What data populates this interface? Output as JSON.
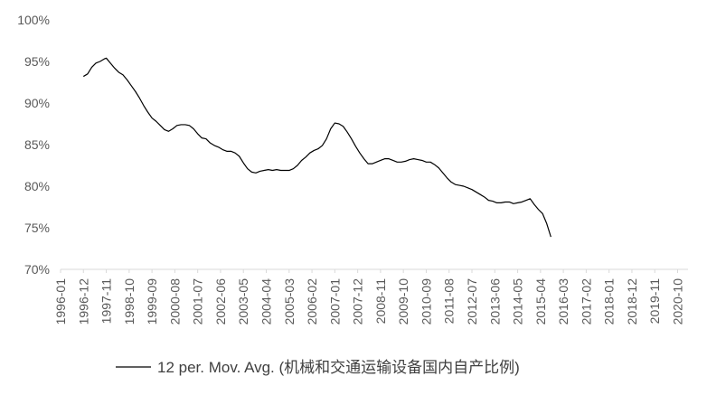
{
  "chart_data": {
    "type": "line",
    "title": "",
    "xlabel": "",
    "ylabel": "",
    "y_unit": "%",
    "ylim": [
      70,
      100
    ],
    "y_ticks": [
      "70%",
      "75%",
      "80%",
      "85%",
      "90%",
      "95%",
      "100%"
    ],
    "y_tick_values": [
      70,
      75,
      80,
      85,
      90,
      95,
      100
    ],
    "x_range": [
      "1996-01",
      "2021-03"
    ],
    "x_tick_labels": [
      "1996-01",
      "1996-12",
      "1997-11",
      "1998-10",
      "1999-09",
      "2000-08",
      "2001-07",
      "2002-06",
      "2003-05",
      "2004-04",
      "2005-03",
      "2006-02",
      "2007-01",
      "2007-12",
      "2008-11",
      "2009-10",
      "2010-09",
      "2011-08",
      "2012-07",
      "2013-06",
      "2014-05",
      "2015-04",
      "2016-03",
      "2017-02",
      "2018-01",
      "2018-12",
      "2019-11",
      "2020-10"
    ],
    "grid": false,
    "legend_position": "bottom",
    "series": [
      {
        "name": "12 per. Mov. Avg. (机械和交通运输设备国内自产比例)",
        "color": "#000000",
        "points": [
          [
            "1996-12",
            93.2
          ],
          [
            "1997-02",
            93.5
          ],
          [
            "1997-04",
            94.3
          ],
          [
            "1997-06",
            94.8
          ],
          [
            "1997-08",
            95.0
          ],
          [
            "1997-10",
            95.3
          ],
          [
            "1997-11",
            95.4
          ],
          [
            "1998-01",
            94.8
          ],
          [
            "1998-03",
            94.2
          ],
          [
            "1998-05",
            93.7
          ],
          [
            "1998-07",
            93.4
          ],
          [
            "1998-09",
            92.8
          ],
          [
            "1998-11",
            92.1
          ],
          [
            "1999-01",
            91.4
          ],
          [
            "1999-03",
            90.6
          ],
          [
            "1999-05",
            89.7
          ],
          [
            "1999-07",
            88.9
          ],
          [
            "1999-09",
            88.2
          ],
          [
            "1999-11",
            87.8
          ],
          [
            "2000-01",
            87.3
          ],
          [
            "2000-03",
            86.8
          ],
          [
            "2000-05",
            86.6
          ],
          [
            "2000-07",
            86.9
          ],
          [
            "2000-09",
            87.3
          ],
          [
            "2000-11",
            87.4
          ],
          [
            "2001-01",
            87.4
          ],
          [
            "2001-03",
            87.3
          ],
          [
            "2001-05",
            86.9
          ],
          [
            "2001-07",
            86.3
          ],
          [
            "2001-09",
            85.8
          ],
          [
            "2001-11",
            85.7
          ],
          [
            "2002-01",
            85.2
          ],
          [
            "2002-03",
            84.9
          ],
          [
            "2002-05",
            84.7
          ],
          [
            "2002-07",
            84.4
          ],
          [
            "2002-09",
            84.2
          ],
          [
            "2002-11",
            84.2
          ],
          [
            "2003-01",
            84.0
          ],
          [
            "2003-03",
            83.6
          ],
          [
            "2003-05",
            82.8
          ],
          [
            "2003-07",
            82.1
          ],
          [
            "2003-09",
            81.7
          ],
          [
            "2003-11",
            81.6
          ],
          [
            "2004-01",
            81.8
          ],
          [
            "2004-03",
            81.9
          ],
          [
            "2004-05",
            82.0
          ],
          [
            "2004-07",
            81.9
          ],
          [
            "2004-09",
            82.0
          ],
          [
            "2004-11",
            81.9
          ],
          [
            "2005-01",
            81.9
          ],
          [
            "2005-03",
            81.9
          ],
          [
            "2005-05",
            82.1
          ],
          [
            "2005-07",
            82.5
          ],
          [
            "2005-09",
            83.1
          ],
          [
            "2005-11",
            83.5
          ],
          [
            "2006-01",
            84.0
          ],
          [
            "2006-03",
            84.3
          ],
          [
            "2006-05",
            84.5
          ],
          [
            "2006-07",
            84.9
          ],
          [
            "2006-09",
            85.7
          ],
          [
            "2006-11",
            86.9
          ],
          [
            "2007-01",
            87.6
          ],
          [
            "2007-03",
            87.5
          ],
          [
            "2007-05",
            87.2
          ],
          [
            "2007-07",
            86.5
          ],
          [
            "2007-09",
            85.7
          ],
          [
            "2007-11",
            84.8
          ],
          [
            "2008-01",
            84.0
          ],
          [
            "2008-03",
            83.3
          ],
          [
            "2008-05",
            82.7
          ],
          [
            "2008-07",
            82.7
          ],
          [
            "2008-09",
            82.9
          ],
          [
            "2008-11",
            83.1
          ],
          [
            "2009-01",
            83.3
          ],
          [
            "2009-03",
            83.3
          ],
          [
            "2009-05",
            83.1
          ],
          [
            "2009-07",
            82.9
          ],
          [
            "2009-09",
            82.9
          ],
          [
            "2009-11",
            83.0
          ],
          [
            "2010-01",
            83.2
          ],
          [
            "2010-03",
            83.3
          ],
          [
            "2010-05",
            83.2
          ],
          [
            "2010-07",
            83.1
          ],
          [
            "2010-09",
            82.9
          ],
          [
            "2010-11",
            82.9
          ],
          [
            "2011-01",
            82.6
          ],
          [
            "2011-03",
            82.2
          ],
          [
            "2011-05",
            81.6
          ],
          [
            "2011-07",
            81.0
          ],
          [
            "2011-09",
            80.5
          ],
          [
            "2011-11",
            80.2
          ],
          [
            "2012-01",
            80.1
          ],
          [
            "2012-03",
            80.0
          ],
          [
            "2012-05",
            79.8
          ],
          [
            "2012-07",
            79.6
          ],
          [
            "2012-09",
            79.3
          ],
          [
            "2012-11",
            79.0
          ],
          [
            "2013-01",
            78.7
          ],
          [
            "2013-03",
            78.3
          ],
          [
            "2013-05",
            78.2
          ],
          [
            "2013-07",
            78.0
          ],
          [
            "2013-09",
            78.0
          ],
          [
            "2013-11",
            78.1
          ],
          [
            "2014-01",
            78.1
          ],
          [
            "2014-03",
            77.9
          ],
          [
            "2014-05",
            78.0
          ],
          [
            "2014-07",
            78.1
          ],
          [
            "2014-09",
            78.3
          ],
          [
            "2014-11",
            78.5
          ],
          [
            "2015-01",
            77.8
          ],
          [
            "2015-03",
            77.2
          ],
          [
            "2015-05",
            76.7
          ],
          [
            "2015-07",
            75.5
          ],
          [
            "2015-09",
            73.9
          ]
        ]
      }
    ]
  }
}
